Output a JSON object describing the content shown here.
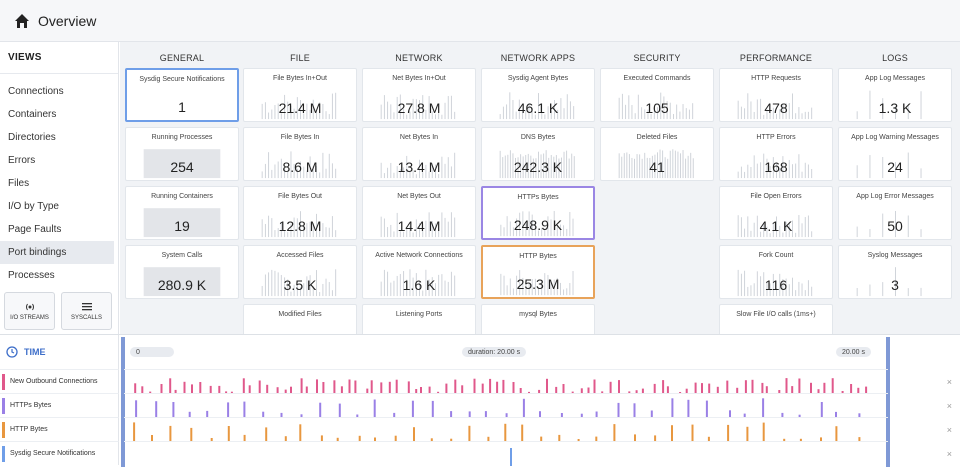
{
  "header": {
    "title": "Overview",
    "icon": "home-icon"
  },
  "sidebar": {
    "views_label": "VIEWS",
    "items": [
      {
        "label": "Connections",
        "active": false
      },
      {
        "label": "Containers",
        "active": false
      },
      {
        "label": "Directories",
        "active": false
      },
      {
        "label": "Errors",
        "active": false
      },
      {
        "label": "Files",
        "active": false
      },
      {
        "label": "I/O by Type",
        "active": false
      },
      {
        "label": "Page Faults",
        "active": false
      },
      {
        "label": "Port bindings",
        "active": true
      },
      {
        "label": "Processes",
        "active": false
      }
    ],
    "buttons": [
      {
        "label": "I/O STREAMS",
        "icon": "radio-waves-icon"
      },
      {
        "label": "SYSCALLS",
        "icon": "list-lines-icon"
      }
    ]
  },
  "columns": [
    "GENERAL",
    "FILE",
    "NETWORK",
    "NETWORK APPS",
    "SECURITY",
    "PERFORMANCE",
    "LOGS"
  ],
  "tiles": [
    [
      {
        "title": "Sysdig Secure Notifications",
        "value": "1",
        "style": "sel-blue",
        "spark": "none"
      },
      {
        "title": "Running Processes",
        "value": "254",
        "spark": "flat"
      },
      {
        "title": "Running Containers",
        "value": "19",
        "spark": "flat"
      },
      {
        "title": "System Calls",
        "value": "280.9 K",
        "spark": "flat"
      }
    ],
    [
      {
        "title": "File Bytes In+Out",
        "value": "21.4 M",
        "spark": "bars"
      },
      {
        "title": "File Bytes In",
        "value": "8.6 M",
        "spark": "bars"
      },
      {
        "title": "File Bytes Out",
        "value": "12.8 M",
        "spark": "bars"
      },
      {
        "title": "Accessed Files",
        "value": "3.5 K",
        "spark": "bars"
      },
      {
        "title": "Modified Files",
        "value": "",
        "spark": "none"
      }
    ],
    [
      {
        "title": "Net Bytes In+Out",
        "value": "27.8 M",
        "spark": "bars"
      },
      {
        "title": "Net Bytes In",
        "value": "13.4 M",
        "spark": "bars"
      },
      {
        "title": "Net Bytes Out",
        "value": "14.4 M",
        "spark": "bars"
      },
      {
        "title": "Active Network Connections",
        "value": "1.6 K",
        "spark": "bars"
      },
      {
        "title": "Listening Ports",
        "value": "",
        "spark": "none"
      }
    ],
    [
      {
        "title": "Sysdig Agent Bytes",
        "value": "46.1 K",
        "spark": "bars"
      },
      {
        "title": "DNS Bytes",
        "value": "242.3 K",
        "spark": "dense"
      },
      {
        "title": "HTTPs Bytes",
        "value": "248.9 K",
        "style": "sel-purple",
        "spark": "bars"
      },
      {
        "title": "HTTP Bytes",
        "value": "25.3 M",
        "style": "sel-orange",
        "spark": "bars"
      },
      {
        "title": "mysql Bytes",
        "value": "",
        "spark": "none"
      }
    ],
    [
      {
        "title": "Executed Commands",
        "value": "105",
        "spark": "bars"
      },
      {
        "title": "Deleted Files",
        "value": "41",
        "spark": "dense"
      }
    ],
    [
      {
        "title": "HTTP Requests",
        "value": "478",
        "spark": "bars"
      },
      {
        "title": "HTTP Errors",
        "value": "168",
        "spark": "bars"
      },
      {
        "title": "File Open Errors",
        "value": "4.1 K",
        "spark": "bars"
      },
      {
        "title": "Fork Count",
        "value": "116",
        "spark": "bars"
      },
      {
        "title": "Slow File I/O calls (1ms+)",
        "value": "",
        "spark": "none"
      }
    ],
    [
      {
        "title": "App Log Messages",
        "value": "1.3 K",
        "spark": "sparse"
      },
      {
        "title": "App Log Warning Messages",
        "value": "24",
        "spark": "sparse"
      },
      {
        "title": "App Log Error Messages",
        "value": "50",
        "spark": "sparse"
      },
      {
        "title": "Syslog Messages",
        "value": "3",
        "spark": "sparse"
      }
    ]
  ],
  "timeline": {
    "label": "TIME",
    "start": "0",
    "duration": "duration: 20.00 s",
    "end": "20.00 s",
    "tracks": [
      {
        "label": "New Outbound Connections",
        "color": "#e0588b",
        "pattern": "dense"
      },
      {
        "label": "HTTPs Bytes",
        "color": "#9a80e6",
        "pattern": "medium"
      },
      {
        "label": "HTTP Bytes",
        "color": "#e8973f",
        "pattern": "medium"
      },
      {
        "label": "Sysdig Secure Notifications",
        "color": "#6f9ee8",
        "pattern": "single"
      }
    ],
    "close_glyph": "×"
  },
  "colors": {
    "accent": "#3d6ec9",
    "grid_bg": "#f1f3f6"
  }
}
